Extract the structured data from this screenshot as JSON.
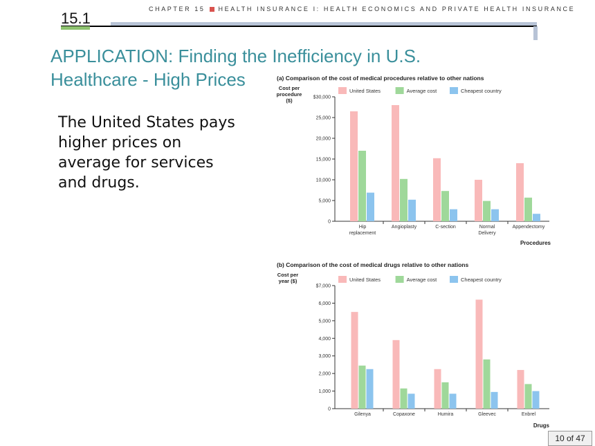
{
  "header": {
    "chapter": "CHAPTER 15",
    "chapter_title": "HEALTH INSURANCE I: HEALTH ECONOMICS AND PRIVATE HEALTH INSURANCE",
    "section": "15.1"
  },
  "slide": {
    "title_line1": "APPLICATION: Finding the Inefficiency in U.S.",
    "title_line2": "Healthcare - High Prices",
    "body": "The United States pays higher prices on average for services and drugs.",
    "page": "10 of 47"
  },
  "colors": {
    "us": "#f9b9b9",
    "avg": "#9fd89a",
    "cheap": "#8cc4ee",
    "title": "#3a8f9b"
  },
  "chart_data": [
    {
      "type": "bar",
      "title": "(a) Comparison of the cost of medical procedures relative to other nations",
      "ylabel_line1": "Cost per",
      "ylabel_line2": "procedure",
      "ylabel_line3": "($)",
      "xlabel": "Procedures",
      "categories": [
        "Hip replacement",
        "Angioplasty",
        "C-section",
        "Normal Delivery",
        "Appendectomy"
      ],
      "ylim": [
        0,
        30000
      ],
      "yticks": [
        "0",
        "5,000",
        "10,000",
        "15,000",
        "20,000",
        "25,000",
        "$30,000"
      ],
      "legend_position": "top",
      "series": [
        {
          "name": "United States",
          "values": [
            26500,
            28000,
            15200,
            10000,
            14000
          ]
        },
        {
          "name": "Average cost",
          "values": [
            17000,
            10200,
            7300,
            4900,
            5700
          ]
        },
        {
          "name": "Cheapest country",
          "values": [
            6900,
            5200,
            2900,
            2900,
            1800
          ]
        }
      ]
    },
    {
      "type": "bar",
      "title": "(b) Comparison of the cost of medical drugs relative to other nations",
      "ylabel_line1": "Cost per",
      "ylabel_line2": "year ($)",
      "xlabel": "Drugs",
      "categories": [
        "Gilenya",
        "Copaxone",
        "Humira",
        "Gleevec",
        "Enbrel"
      ],
      "ylim": [
        0,
        7000
      ],
      "yticks": [
        "0",
        "1,000",
        "2,000",
        "3,000",
        "4,000",
        "5,000",
        "6,000",
        "$7,000"
      ],
      "legend_position": "top",
      "series": [
        {
          "name": "United States",
          "values": [
            5500,
            3900,
            2250,
            6200,
            2200
          ]
        },
        {
          "name": "Average cost",
          "values": [
            2450,
            1150,
            1500,
            2800,
            1400
          ]
        },
        {
          "name": "Cheapest country",
          "values": [
            2250,
            850,
            850,
            950,
            1000
          ]
        }
      ]
    }
  ]
}
